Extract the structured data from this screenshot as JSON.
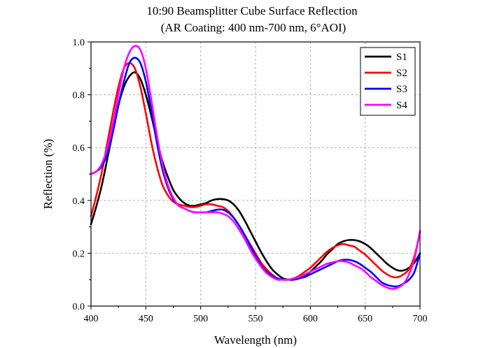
{
  "chart_data": {
    "type": "line",
    "title": "10:90 Beamsplitter Cube Surface Reflection",
    "subtitle": "(AR Coating: 400 nm-700 nm, 6°AOI)",
    "xlabel": "Wavelength (nm)",
    "ylabel": "Reflection (%)",
    "xlim": [
      400,
      700
    ],
    "ylim": [
      0,
      1.0
    ],
    "xticks": [
      400,
      450,
      500,
      550,
      600,
      650,
      700
    ],
    "yticks": [
      0.0,
      0.2,
      0.4,
      0.6,
      0.8,
      1.0
    ],
    "xtick_labels": [
      "400",
      "450",
      "500",
      "550",
      "600",
      "650",
      "700"
    ],
    "ytick_labels": [
      "0.0",
      "0.2",
      "0.4",
      "0.6",
      "0.8",
      "1.0"
    ],
    "grid": true,
    "legend_position": "top-right",
    "series": [
      {
        "name": "S1",
        "color": "#000000",
        "x": [
          400,
          405,
          410,
          415,
          420,
          425,
          430,
          435,
          440,
          445,
          450,
          455,
          460,
          465,
          470,
          475,
          480,
          485,
          490,
          495,
          500,
          505,
          510,
          515,
          520,
          525,
          530,
          535,
          540,
          545,
          550,
          555,
          560,
          565,
          570,
          575,
          580,
          585,
          590,
          595,
          600,
          605,
          610,
          615,
          620,
          625,
          630,
          635,
          640,
          645,
          650,
          655,
          660,
          665,
          670,
          675,
          680,
          685,
          690,
          695,
          700
        ],
        "y": [
          0.31,
          0.38,
          0.46,
          0.56,
          0.66,
          0.76,
          0.83,
          0.87,
          0.885,
          0.86,
          0.8,
          0.72,
          0.63,
          0.55,
          0.49,
          0.44,
          0.41,
          0.39,
          0.38,
          0.38,
          0.385,
          0.39,
          0.4,
          0.405,
          0.405,
          0.4,
          0.385,
          0.36,
          0.325,
          0.285,
          0.245,
          0.205,
          0.17,
          0.14,
          0.12,
          0.105,
          0.1,
          0.1,
          0.105,
          0.115,
          0.13,
          0.15,
          0.17,
          0.195,
          0.215,
          0.235,
          0.245,
          0.25,
          0.25,
          0.245,
          0.235,
          0.22,
          0.2,
          0.18,
          0.16,
          0.145,
          0.135,
          0.135,
          0.145,
          0.165,
          0.2
        ]
      },
      {
        "name": "S2",
        "color": "#ff0000",
        "x": [
          400,
          405,
          410,
          415,
          420,
          425,
          430,
          435,
          440,
          445,
          450,
          455,
          460,
          465,
          470,
          475,
          480,
          485,
          490,
          495,
          500,
          505,
          510,
          515,
          520,
          525,
          530,
          535,
          540,
          545,
          550,
          555,
          560,
          565,
          570,
          575,
          580,
          585,
          590,
          595,
          600,
          605,
          610,
          615,
          620,
          625,
          630,
          635,
          640,
          645,
          650,
          655,
          660,
          665,
          670,
          675,
          680,
          685,
          690,
          695,
          700
        ],
        "y": [
          0.34,
          0.42,
          0.51,
          0.62,
          0.73,
          0.83,
          0.9,
          0.92,
          0.9,
          0.83,
          0.73,
          0.62,
          0.53,
          0.46,
          0.42,
          0.395,
          0.385,
          0.38,
          0.375,
          0.375,
          0.38,
          0.385,
          0.385,
          0.38,
          0.375,
          0.36,
          0.335,
          0.305,
          0.27,
          0.235,
          0.2,
          0.165,
          0.14,
          0.12,
          0.105,
          0.1,
          0.1,
          0.105,
          0.115,
          0.13,
          0.145,
          0.165,
          0.185,
          0.205,
          0.22,
          0.23,
          0.235,
          0.23,
          0.225,
          0.21,
          0.195,
          0.175,
          0.155,
          0.135,
          0.12,
          0.11,
          0.11,
          0.12,
          0.14,
          0.19,
          0.28
        ]
      },
      {
        "name": "S3",
        "color": "#0000ff",
        "x": [
          400,
          405,
          410,
          415,
          420,
          425,
          430,
          435,
          440,
          445,
          450,
          455,
          460,
          465,
          470,
          475,
          480,
          485,
          490,
          495,
          500,
          505,
          510,
          515,
          520,
          525,
          530,
          535,
          540,
          545,
          550,
          555,
          560,
          565,
          570,
          575,
          580,
          585,
          590,
          595,
          600,
          605,
          610,
          615,
          620,
          625,
          630,
          635,
          640,
          645,
          650,
          655,
          660,
          665,
          670,
          675,
          680,
          685,
          690,
          695,
          700
        ],
        "y": [
          0.5,
          0.51,
          0.53,
          0.58,
          0.66,
          0.76,
          0.85,
          0.92,
          0.94,
          0.92,
          0.85,
          0.74,
          0.62,
          0.52,
          0.45,
          0.405,
          0.38,
          0.37,
          0.36,
          0.355,
          0.355,
          0.355,
          0.36,
          0.365,
          0.365,
          0.355,
          0.335,
          0.305,
          0.27,
          0.23,
          0.19,
          0.155,
          0.13,
          0.115,
          0.105,
          0.1,
          0.1,
          0.1,
          0.105,
          0.11,
          0.12,
          0.13,
          0.14,
          0.15,
          0.16,
          0.17,
          0.175,
          0.175,
          0.17,
          0.16,
          0.145,
          0.13,
          0.11,
          0.09,
          0.08,
          0.075,
          0.075,
          0.085,
          0.1,
          0.13,
          0.2
        ]
      },
      {
        "name": "S4",
        "color": "#ff00ff",
        "x": [
          400,
          405,
          410,
          415,
          420,
          425,
          430,
          435,
          440,
          445,
          450,
          455,
          460,
          465,
          470,
          475,
          480,
          485,
          490,
          495,
          500,
          505,
          510,
          515,
          520,
          525,
          530,
          535,
          540,
          545,
          550,
          555,
          560,
          565,
          570,
          575,
          580,
          585,
          590,
          595,
          600,
          605,
          610,
          615,
          620,
          625,
          630,
          635,
          640,
          645,
          650,
          655,
          660,
          665,
          670,
          675,
          680,
          685,
          690,
          695,
          700
        ],
        "y": [
          0.5,
          0.51,
          0.54,
          0.6,
          0.69,
          0.8,
          0.9,
          0.96,
          0.985,
          0.97,
          0.9,
          0.78,
          0.65,
          0.54,
          0.46,
          0.41,
          0.38,
          0.37,
          0.36,
          0.355,
          0.355,
          0.355,
          0.355,
          0.355,
          0.35,
          0.34,
          0.32,
          0.29,
          0.255,
          0.215,
          0.18,
          0.15,
          0.125,
          0.11,
          0.1,
          0.1,
          0.1,
          0.105,
          0.11,
          0.12,
          0.13,
          0.14,
          0.15,
          0.16,
          0.165,
          0.17,
          0.17,
          0.165,
          0.155,
          0.145,
          0.13,
          0.11,
          0.095,
          0.08,
          0.07,
          0.065,
          0.07,
          0.085,
          0.12,
          0.18,
          0.285
        ]
      }
    ]
  }
}
